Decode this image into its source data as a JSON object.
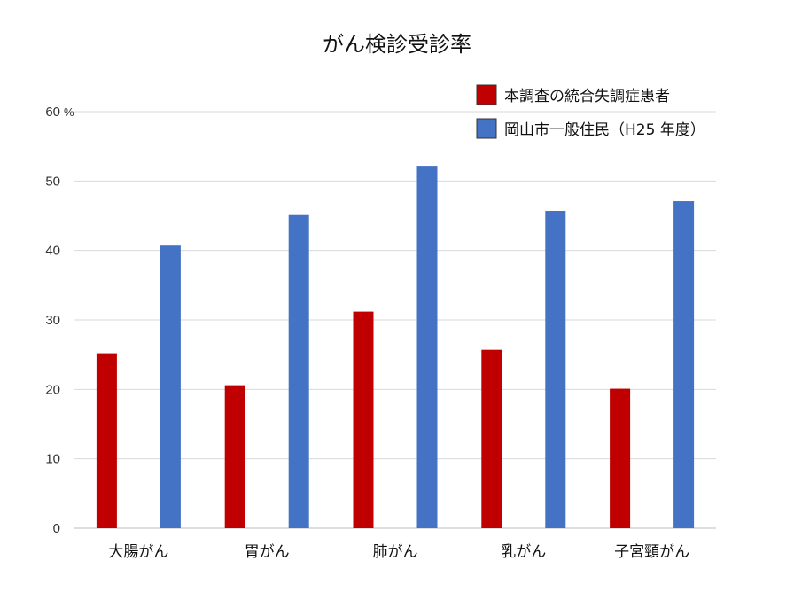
{
  "chart_data": {
    "type": "bar",
    "title": "がん検診受診率",
    "y_unit": "%",
    "ylim": [
      0,
      60
    ],
    "y_ticks": [
      0,
      10,
      20,
      30,
      40,
      50,
      60
    ],
    "grid": true,
    "legend_position": "top-right",
    "categories": [
      "大腸がん",
      "胃がん",
      "肺がん",
      "乳がん",
      "子宮頸がん"
    ],
    "series": [
      {
        "name": "本調査の統合失調症患者",
        "color": "#c00000",
        "values": [
          25.2,
          20.6,
          31.2,
          25.7,
          20.1
        ]
      },
      {
        "name": "岡山市一般住民（H25 年度）",
        "color": "#4472c4",
        "values": [
          40.7,
          45.1,
          52.2,
          45.7,
          47.1
        ]
      }
    ]
  }
}
